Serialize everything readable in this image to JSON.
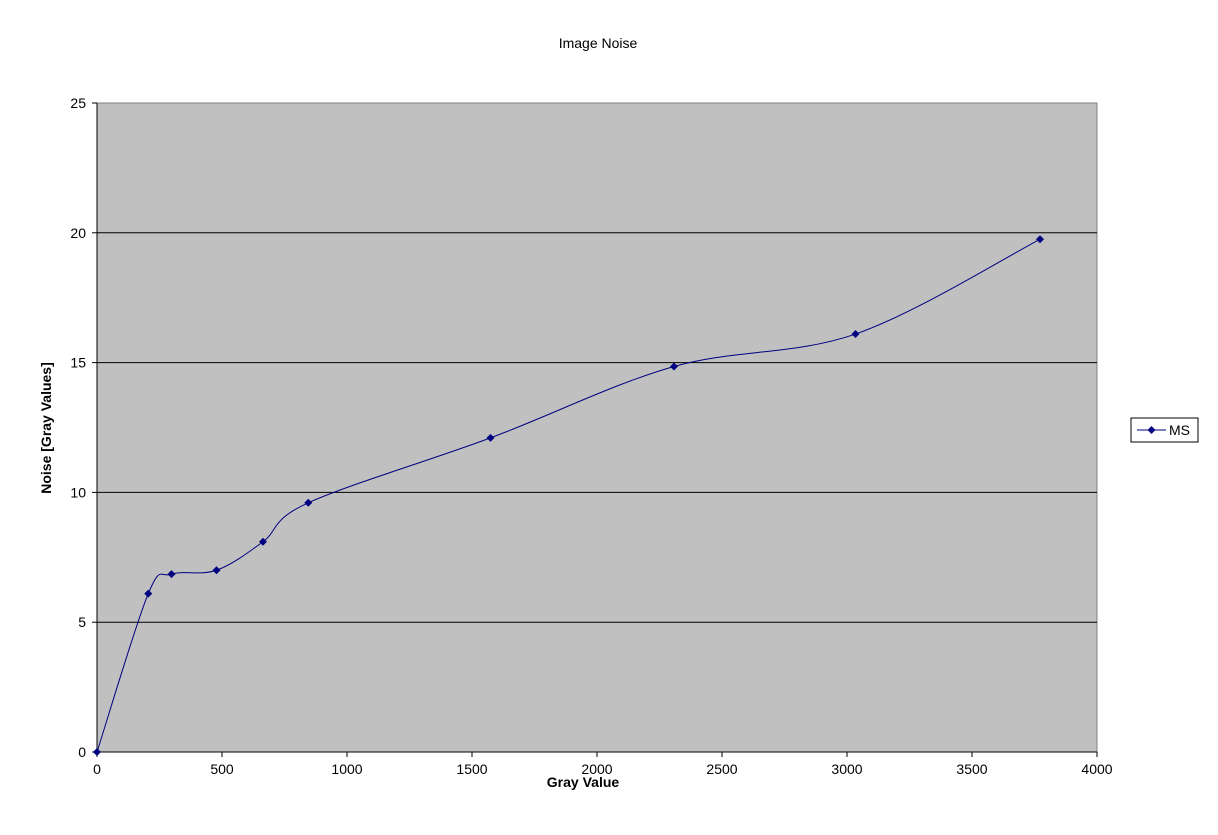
{
  "chart_data": {
    "type": "line",
    "title": "Image Noise",
    "xlabel": "Gray Value",
    "ylabel": "Noise [Gray Values]",
    "xlim": [
      0,
      4000
    ],
    "ylim": [
      0,
      25
    ],
    "x_ticks": [
      0,
      500,
      1000,
      1500,
      2000,
      2500,
      3000,
      3500,
      4000
    ],
    "y_ticks": [
      0,
      5,
      10,
      15,
      20,
      25
    ],
    "grid": "horizontal",
    "smoothed": true,
    "legend_position": "right",
    "colors": {
      "plot_background": "#c0c0c0",
      "series": "#000080",
      "gridline": "#000000"
    },
    "series": [
      {
        "name": "MS",
        "x": [
          0,
          205,
          298,
          478,
          664,
          845,
          1574,
          2308,
          3034,
          3772
        ],
        "y": [
          0,
          6.1,
          6.85,
          7.0,
          8.1,
          9.6,
          12.1,
          14.85,
          16.1,
          19.75
        ]
      }
    ]
  }
}
